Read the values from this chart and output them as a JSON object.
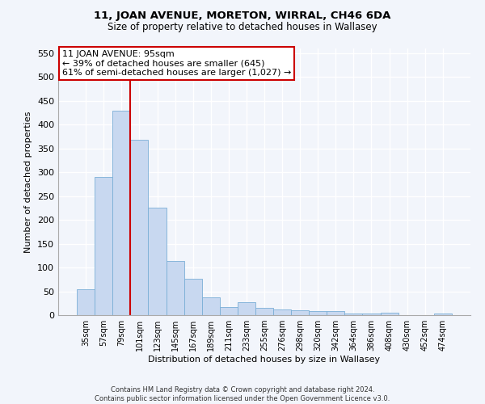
{
  "title": "11, JOAN AVENUE, MORETON, WIRRAL, CH46 6DA",
  "subtitle": "Size of property relative to detached houses in Wallasey",
  "xlabel": "Distribution of detached houses by size in Wallasey",
  "ylabel": "Number of detached properties",
  "categories": [
    "35sqm",
    "57sqm",
    "79sqm",
    "101sqm",
    "123sqm",
    "145sqm",
    "167sqm",
    "189sqm",
    "211sqm",
    "233sqm",
    "255sqm",
    "276sqm",
    "298sqm",
    "320sqm",
    "342sqm",
    "364sqm",
    "386sqm",
    "408sqm",
    "430sqm",
    "452sqm",
    "474sqm"
  ],
  "values": [
    55,
    291,
    430,
    369,
    225,
    113,
    76,
    37,
    17,
    27,
    15,
    12,
    10,
    8,
    8,
    4,
    4,
    5,
    0,
    0,
    4
  ],
  "bar_color": "#c8d8f0",
  "bar_edge_color": "#7aaed6",
  "vline_x": 2.5,
  "vline_color": "#cc0000",
  "annotation_text": "11 JOAN AVENUE: 95sqm\n← 39% of detached houses are smaller (645)\n61% of semi-detached houses are larger (1,027) →",
  "annotation_box_color": "#ffffff",
  "annotation_box_edge": "#cc0000",
  "ylim": [
    0,
    560
  ],
  "yticks": [
    0,
    50,
    100,
    150,
    200,
    250,
    300,
    350,
    400,
    450,
    500,
    550
  ],
  "footer": "Contains HM Land Registry data © Crown copyright and database right 2024.\nContains public sector information licensed under the Open Government Licence v3.0.",
  "bg_color": "#f2f5fb",
  "plot_bg_color": "#f2f5fb",
  "grid_color": "#ffffff"
}
